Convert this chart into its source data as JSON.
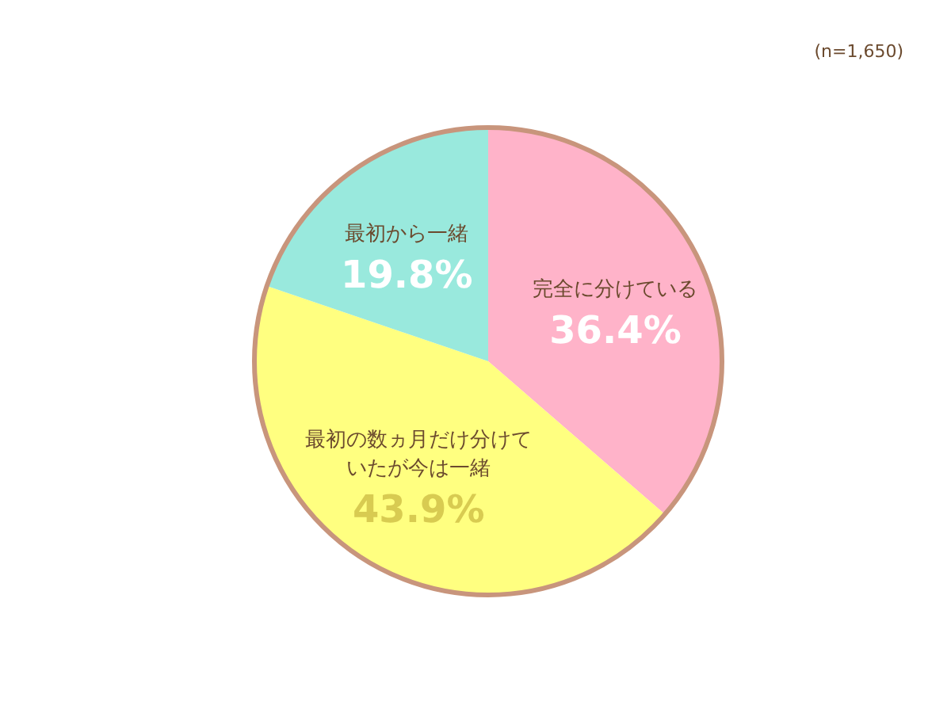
{
  "chart_data": {
    "type": "pie",
    "categories": [
      "完全に分けている",
      "最初の数ヵ月だけ分けていたが今は一緒",
      "最初から一緒"
    ],
    "values": [
      36.4,
      43.9,
      19.8
    ],
    "colors": [
      "#ffb3c9",
      "#ffff80",
      "#99e9dd"
    ],
    "value_labels": [
      "36.4%",
      "43.9%",
      "19.8%"
    ],
    "annotations": [
      "(n=1,650)"
    ]
  }
}
